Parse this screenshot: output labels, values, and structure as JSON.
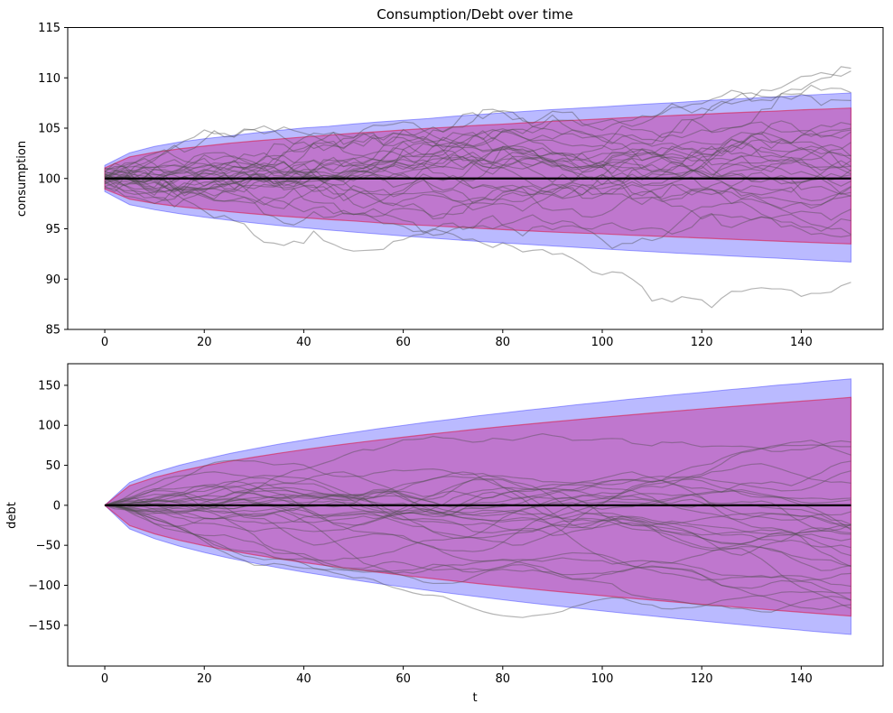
{
  "figure": {
    "title": "Consumption/Debt over time",
    "background": "#ffffff"
  },
  "colors": {
    "outer_band_fill": "#0000ff",
    "outer_band_fill_opacity": 0.27,
    "outer_band_stroke": "#4444ff",
    "outer_band_stroke_opacity": 0.5,
    "inner_band_fill": "#c71585",
    "inner_band_fill_opacity": 0.4,
    "inner_band_stroke": "#dc143c",
    "inner_band_stroke_opacity": 0.55,
    "sample_path_stroke": "#4d4d4d",
    "sample_path_opacity": 0.42,
    "mean_line_stroke": "#000000",
    "spine_stroke": "#000000"
  },
  "chart_data": [
    {
      "type": "line",
      "title": "Consumption/Debt over time",
      "ylabel": "consumption",
      "xlabel": "",
      "xlim": [
        -7.45,
        156.45
      ],
      "ylim": [
        85,
        115
      ],
      "grid": false,
      "legend": "none",
      "xticks": {
        "values": [
          0,
          20,
          40,
          60,
          80,
          100,
          120,
          140
        ],
        "labels": [
          "0",
          "20",
          "40",
          "60",
          "80",
          "100",
          "120",
          "140"
        ]
      },
      "yticks": {
        "values": [
          85,
          90,
          95,
          100,
          105,
          110,
          115
        ],
        "labels": [
          "85",
          "90",
          "95",
          "100",
          "105",
          "110",
          "115"
        ]
      },
      "mean_value": 100,
      "mean_span": [
        0,
        150
      ],
      "bands": {
        "t": [
          0,
          5,
          10,
          15,
          20,
          25,
          30,
          35,
          40,
          45,
          50,
          55,
          60,
          65,
          70,
          75,
          80,
          85,
          90,
          95,
          100,
          105,
          110,
          115,
          120,
          125,
          130,
          135,
          140,
          145,
          150
        ],
        "outer_upper": [
          101.3,
          102.55,
          103.18,
          103.62,
          103.95,
          104.22,
          104.52,
          104.78,
          105.02,
          105.18,
          105.42,
          105.62,
          105.78,
          105.95,
          106.18,
          106.35,
          106.52,
          106.68,
          106.85,
          106.98,
          107.12,
          107.28,
          107.42,
          107.55,
          107.72,
          107.85,
          107.98,
          108.1,
          108.25,
          108.38,
          108.5
        ],
        "inner_upper": [
          101.05,
          102.15,
          102.6,
          102.95,
          103.22,
          103.5,
          103.72,
          103.92,
          104.12,
          104.3,
          104.5,
          104.65,
          104.82,
          104.98,
          105.12,
          105.28,
          105.4,
          105.55,
          105.68,
          105.8,
          105.92,
          106.05,
          106.15,
          106.28,
          106.38,
          106.5,
          106.6,
          106.7,
          106.82,
          106.9,
          107.0
        ],
        "inner_lower": [
          98.95,
          97.95,
          97.52,
          97.2,
          96.95,
          96.7,
          96.48,
          96.28,
          96.1,
          95.92,
          95.78,
          95.6,
          95.45,
          95.32,
          95.18,
          95.05,
          94.92,
          94.8,
          94.68,
          94.58,
          94.5,
          94.38,
          94.28,
          94.18,
          94.08,
          93.98,
          93.88,
          93.78,
          93.68,
          93.58,
          93.5
        ],
        "outer_lower": [
          98.7,
          97.4,
          96.9,
          96.5,
          96.15,
          95.85,
          95.58,
          95.32,
          95.1,
          94.88,
          94.68,
          94.48,
          94.28,
          94.1,
          93.92,
          93.76,
          93.6,
          93.45,
          93.3,
          93.15,
          93.0,
          92.86,
          92.72,
          92.58,
          92.45,
          92.32,
          92.2,
          92.08,
          91.95,
          91.82,
          91.7
        ]
      },
      "sample_paths": {
        "count": 30,
        "t_max": 150,
        "t_step": 2,
        "start_min": 99.0,
        "start_max": 101.0,
        "sigma": 0.48,
        "momentum": 0.15,
        "seed": 42
      }
    },
    {
      "type": "line",
      "title": "",
      "ylabel": "debt",
      "xlabel": "t",
      "xlim": [
        -7.45,
        156.45
      ],
      "ylim": [
        -201,
        177
      ],
      "grid": false,
      "legend": "none",
      "xticks": {
        "values": [
          0,
          20,
          40,
          60,
          80,
          100,
          120,
          140
        ],
        "labels": [
          "0",
          "20",
          "40",
          "60",
          "80",
          "100",
          "120",
          "140"
        ]
      },
      "yticks": {
        "values": [
          -150,
          -100,
          -50,
          0,
          50,
          100,
          150
        ],
        "labels": [
          "−150",
          "−100",
          "−50",
          "0",
          "50",
          "100",
          "150"
        ]
      },
      "mean_value": 0,
      "mean_span": [
        0,
        150
      ],
      "bands": {
        "t": [
          0,
          5,
          10,
          15,
          20,
          25,
          30,
          35,
          40,
          45,
          50,
          55,
          60,
          65,
          70,
          75,
          80,
          85,
          90,
          95,
          100,
          105,
          110,
          115,
          120,
          125,
          130,
          135,
          140,
          145,
          150
        ],
        "outer_upper": [
          0,
          28.6,
          40.9,
          50.1,
          57.6,
          64.6,
          70.6,
          76.4,
          81.5,
          86.6,
          91.1,
          95.8,
          99.8,
          104.1,
          107.8,
          111.8,
          115.3,
          119.0,
          122.3,
          125.8,
          128.9,
          132.3,
          135.2,
          138.4,
          141.2,
          144.3,
          147.0,
          150.0,
          152.5,
          155.4,
          158.0
        ],
        "inner_upper": [
          0,
          24.6,
          34.8,
          42.6,
          49.2,
          55.0,
          60.2,
          65.1,
          69.6,
          73.8,
          77.8,
          81.6,
          85.2,
          88.7,
          92.0,
          95.3,
          98.4,
          101.4,
          104.4,
          107.2,
          110.0,
          112.7,
          115.4,
          118.0,
          120.5,
          123.0,
          125.4,
          127.8,
          130.2,
          132.5,
          135.0
        ],
        "inner_lower": [
          0,
          -25.3,
          -35.7,
          -43.8,
          -50.5,
          -56.5,
          -61.9,
          -66.9,
          -71.5,
          -75.8,
          -79.9,
          -83.8,
          -87.5,
          -91.1,
          -94.5,
          -97.9,
          -101.1,
          -104.2,
          -107.2,
          -110.1,
          -113.0,
          -115.8,
          -118.5,
          -121.2,
          -123.8,
          -126.3,
          -128.8,
          -131.3,
          -133.7,
          -136.1,
          -138.5
        ],
        "outer_lower": [
          0,
          -29.5,
          -41.7,
          -51.1,
          -59.0,
          -66.0,
          -72.3,
          -78.1,
          -83.5,
          -88.5,
          -93.3,
          -97.9,
          -102.2,
          -106.4,
          -110.4,
          -114.3,
          -118.1,
          -121.7,
          -125.2,
          -128.7,
          -132.0,
          -135.3,
          -138.4,
          -141.6,
          -144.6,
          -147.6,
          -150.5,
          -153.4,
          -156.2,
          -159.0,
          -161.5
        ]
      },
      "sample_paths": {
        "count": 30,
        "t_max": 150,
        "t_step": 2,
        "start_min": 0,
        "start_max": 0,
        "sigma": 2.2,
        "momentum": 0.78,
        "seed": 9
      }
    }
  ]
}
